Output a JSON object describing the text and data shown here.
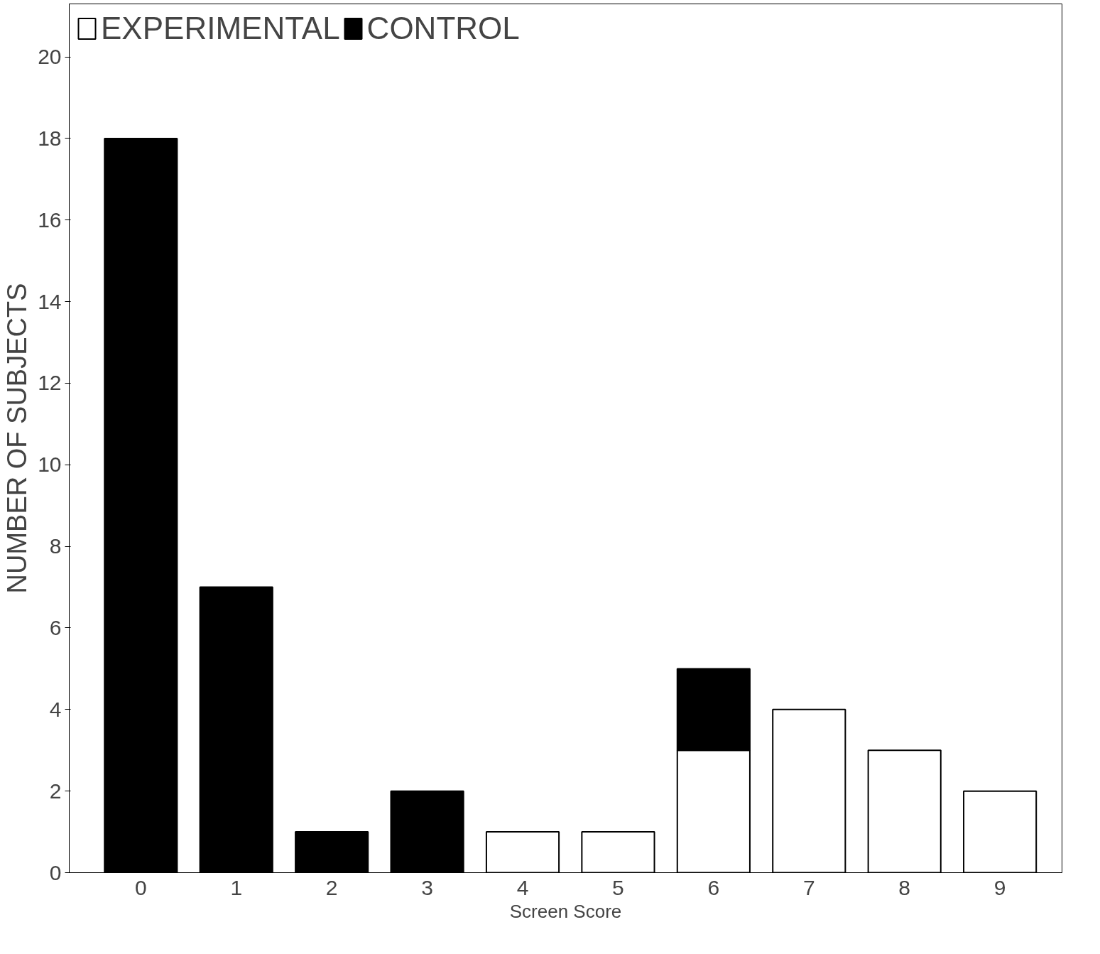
{
  "chart_data": {
    "type": "bar",
    "stacked": true,
    "xlabel": "Screen Score",
    "ylabel": "NUMBER OF SUBJECTS",
    "categories": [
      "0",
      "1",
      "2",
      "3",
      "4",
      "5",
      "6",
      "7",
      "8",
      "9"
    ],
    "series": [
      {
        "name": "EXPERIMENTAL",
        "color": "#ffffff",
        "values": [
          0,
          0,
          0,
          0,
          1,
          1,
          3,
          4,
          3,
          2
        ]
      },
      {
        "name": "CONTROL",
        "color": "#000000",
        "values": [
          18,
          7,
          1,
          2,
          0,
          0,
          2,
          0,
          0,
          0
        ]
      }
    ],
    "ylim": [
      0,
      21.3
    ],
    "yticks": [
      0,
      2,
      4,
      6,
      8,
      10,
      12,
      14,
      16,
      18,
      20
    ],
    "grid": false,
    "legend": "top left"
  }
}
